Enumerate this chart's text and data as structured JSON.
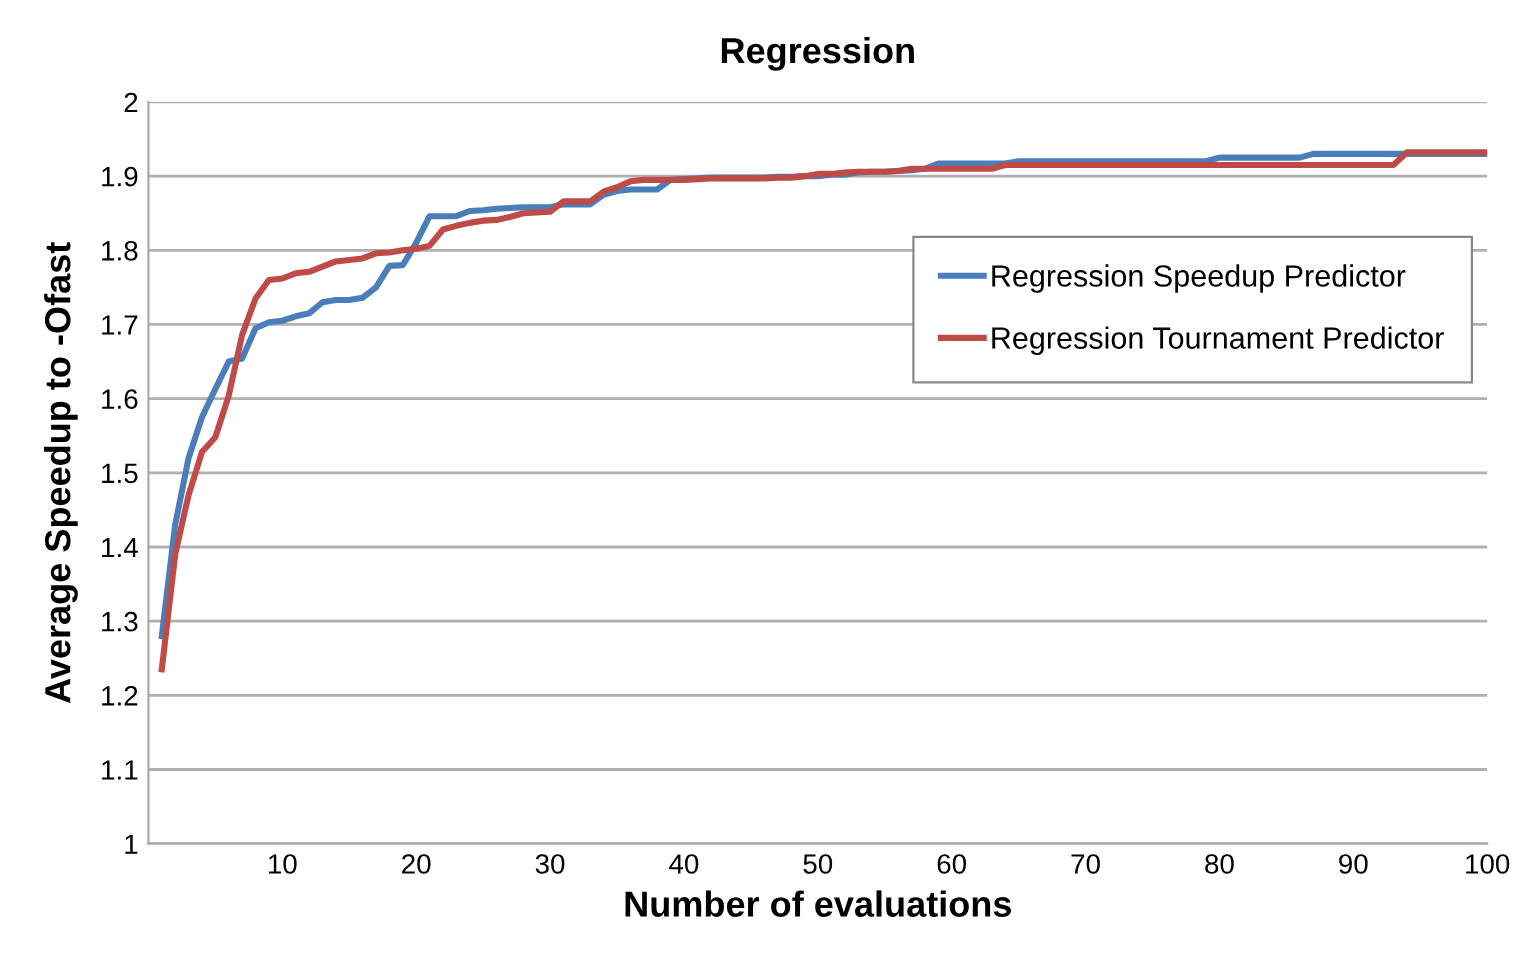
{
  "chart_data": {
    "type": "line",
    "title": "Regression",
    "xlabel": "Number of evaluations",
    "ylabel": "Average Speedup to -Ofast",
    "x": [
      1,
      2,
      3,
      4,
      5,
      6,
      7,
      8,
      9,
      10,
      11,
      12,
      13,
      14,
      15,
      16,
      17,
      18,
      19,
      20,
      21,
      22,
      23,
      24,
      25,
      26,
      27,
      28,
      29,
      30,
      31,
      32,
      33,
      34,
      35,
      36,
      37,
      38,
      39,
      40,
      41,
      42,
      43,
      44,
      45,
      46,
      47,
      48,
      49,
      50,
      51,
      52,
      53,
      54,
      55,
      56,
      57,
      58,
      59,
      60,
      61,
      62,
      63,
      64,
      65,
      66,
      67,
      68,
      69,
      70,
      71,
      72,
      73,
      74,
      75,
      76,
      77,
      78,
      79,
      80,
      81,
      82,
      83,
      84,
      85,
      86,
      87,
      88,
      89,
      90,
      91,
      92,
      93,
      94,
      95,
      96,
      97,
      98,
      99,
      100
    ],
    "series": [
      {
        "name": "Regression Speedup Predictor",
        "color": "#4a7ebb",
        "values": [
          1.28,
          1.43,
          1.52,
          1.575,
          1.613,
          1.65,
          1.654,
          1.695,
          1.703,
          1.705,
          1.711,
          1.715,
          1.73,
          1.733,
          1.733,
          1.736,
          1.75,
          1.779,
          1.78,
          1.81,
          1.846,
          1.846,
          1.846,
          1.853,
          1.854,
          1.856,
          1.857,
          1.858,
          1.858,
          1.858,
          1.862,
          1.862,
          1.862,
          1.875,
          1.88,
          1.882,
          1.882,
          1.882,
          1.895,
          1.896,
          1.897,
          1.898,
          1.898,
          1.898,
          1.898,
          1.898,
          1.899,
          1.899,
          1.9,
          1.9,
          1.902,
          1.902,
          1.905,
          1.906,
          1.906,
          1.907,
          1.908,
          1.91,
          1.917,
          1.917,
          1.917,
          1.917,
          1.917,
          1.917,
          1.92,
          1.92,
          1.92,
          1.92,
          1.92,
          1.92,
          1.92,
          1.92,
          1.92,
          1.92,
          1.92,
          1.92,
          1.92,
          1.92,
          1.92,
          1.925,
          1.925,
          1.925,
          1.925,
          1.925,
          1.925,
          1.925,
          1.93,
          1.93,
          1.93,
          1.93,
          1.93,
          1.93,
          1.93,
          1.93,
          1.93,
          1.93,
          1.93,
          1.93,
          1.93,
          1.93
        ]
      },
      {
        "name": "Regression Tournament Predictor",
        "color": "#be4b48",
        "values": [
          1.235,
          1.39,
          1.47,
          1.528,
          1.548,
          1.604,
          1.686,
          1.735,
          1.76,
          1.762,
          1.769,
          1.771,
          1.778,
          1.785,
          1.787,
          1.789,
          1.796,
          1.797,
          1.8,
          1.802,
          1.806,
          1.828,
          1.833,
          1.837,
          1.84,
          1.841,
          1.845,
          1.85,
          1.851,
          1.852,
          1.866,
          1.866,
          1.866,
          1.879,
          1.885,
          1.893,
          1.895,
          1.895,
          1.895,
          1.895,
          1.896,
          1.897,
          1.897,
          1.897,
          1.897,
          1.897,
          1.898,
          1.898,
          1.9,
          1.903,
          1.903,
          1.905,
          1.906,
          1.906,
          1.906,
          1.907,
          1.91,
          1.91,
          1.91,
          1.91,
          1.91,
          1.91,
          1.91,
          1.915,
          1.915,
          1.915,
          1.915,
          1.915,
          1.915,
          1.915,
          1.915,
          1.915,
          1.915,
          1.915,
          1.915,
          1.915,
          1.915,
          1.915,
          1.915,
          1.915,
          1.915,
          1.915,
          1.915,
          1.915,
          1.915,
          1.915,
          1.915,
          1.915,
          1.915,
          1.915,
          1.915,
          1.915,
          1.915,
          1.932,
          1.932,
          1.932,
          1.932,
          1.932,
          1.932,
          1.932
        ]
      }
    ],
    "xlim": [
      0,
      100
    ],
    "xticks": [
      10,
      20,
      30,
      40,
      50,
      60,
      70,
      80,
      90,
      100
    ],
    "ylim": [
      1,
      2
    ],
    "yticks": [
      1,
      1.1,
      1.2,
      1.3,
      1.4,
      1.5,
      1.6,
      1.7,
      1.8,
      1.9,
      2
    ],
    "grid": "y",
    "legend": "center right",
    "marker": "none",
    "line_style": "solid"
  }
}
